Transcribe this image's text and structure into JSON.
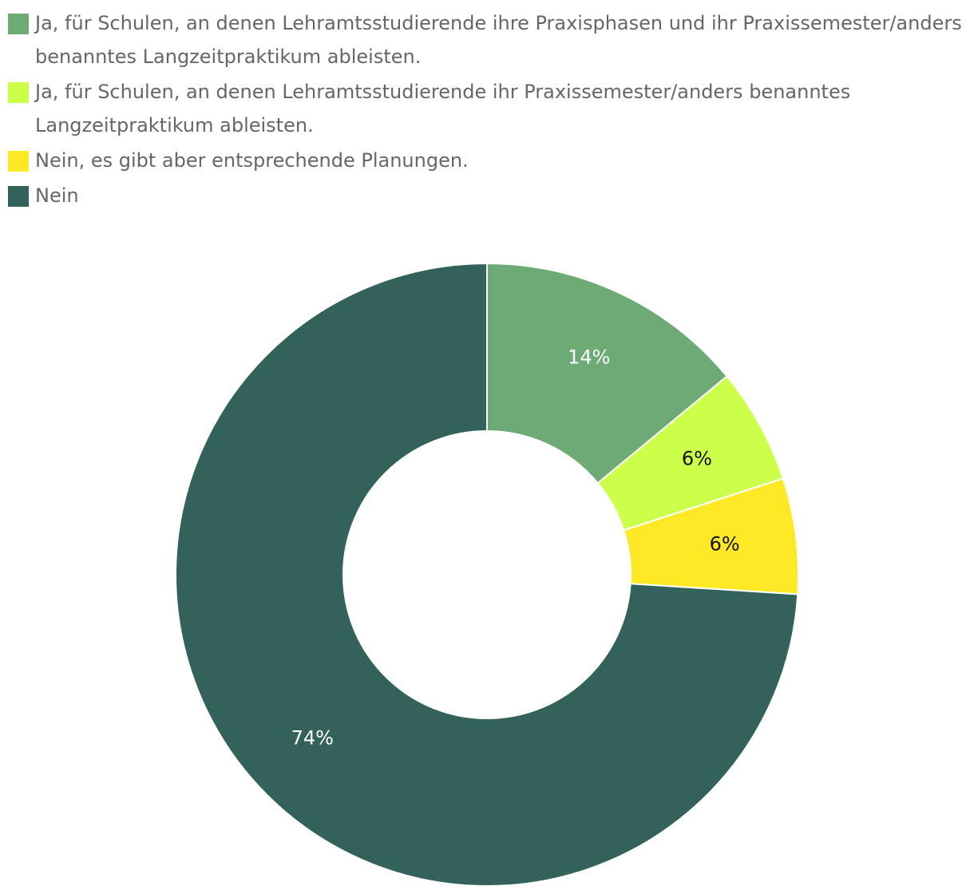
{
  "chart_data": {
    "type": "pie",
    "variant": "donut",
    "title": "",
    "legend_position": "top-left",
    "categories": [
      "Ja, für Schulen, an denen Lehramtsstudierende ihre Praxisphasen und ihr Praxissemester/anders benanntes Langzeitpraktikum ableisten.",
      "Ja, für Schulen, an denen Lehramtsstudierende ihr Praxissemester/anders benanntes Langzeitpraktikum ableisten.",
      "Nein, es gibt aber entsprechende Planungen.",
      "Nein"
    ],
    "values": [
      14,
      6,
      6,
      74
    ],
    "data_labels": [
      "14%",
      "6%",
      "6%",
      "74%"
    ],
    "colors": [
      "#6daa76",
      "#ccff4a",
      "#ffe825",
      "#33625a"
    ],
    "label_colors": [
      "#ffffff",
      "#111111",
      "#111111",
      "#ffffff"
    ]
  }
}
